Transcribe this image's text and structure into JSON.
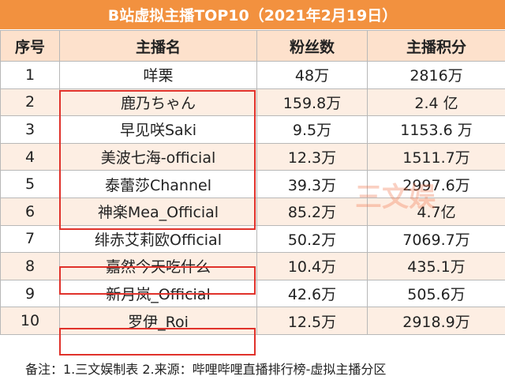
{
  "title": "B站虚拟主播TOP10（2021年2月19日）",
  "table": {
    "header": [
      "序号",
      "主播名",
      "粉丝数",
      "主播积分"
    ],
    "rows": [
      [
        "1",
        "咩栗",
        "48万",
        "2816万"
      ],
      [
        "2",
        "鹿乃ちゃん",
        "159.8万",
        "2.4 亿"
      ],
      [
        "3",
        "早见咲Saki",
        "9.5万",
        "1153.6 万"
      ],
      [
        "4",
        "美波七海-official",
        "12.3万",
        "1511.7万"
      ],
      [
        "5",
        "泰蕾莎Channel",
        "39.3万",
        "2997.6万"
      ],
      [
        "6",
        "神楽Mea_Official",
        "85.2万",
        "4.7亿"
      ],
      [
        "7",
        "绯赤艾莉欧Official",
        "50.2万",
        "7069.7万"
      ],
      [
        "8",
        "嘉然今天吃什么",
        "10.4万",
        "435.1万"
      ],
      [
        "9",
        "新月岚_Official",
        "42.6万",
        "505.6万"
      ],
      [
        "10",
        "罗伊_Roi",
        "12.5万",
        "2918.9万"
      ]
    ]
  },
  "watermark": "三文娱",
  "footnote": "备注：1.三文娱制表 2.来源：哔哩哔哩直播排行榜-虚拟主播分区"
}
